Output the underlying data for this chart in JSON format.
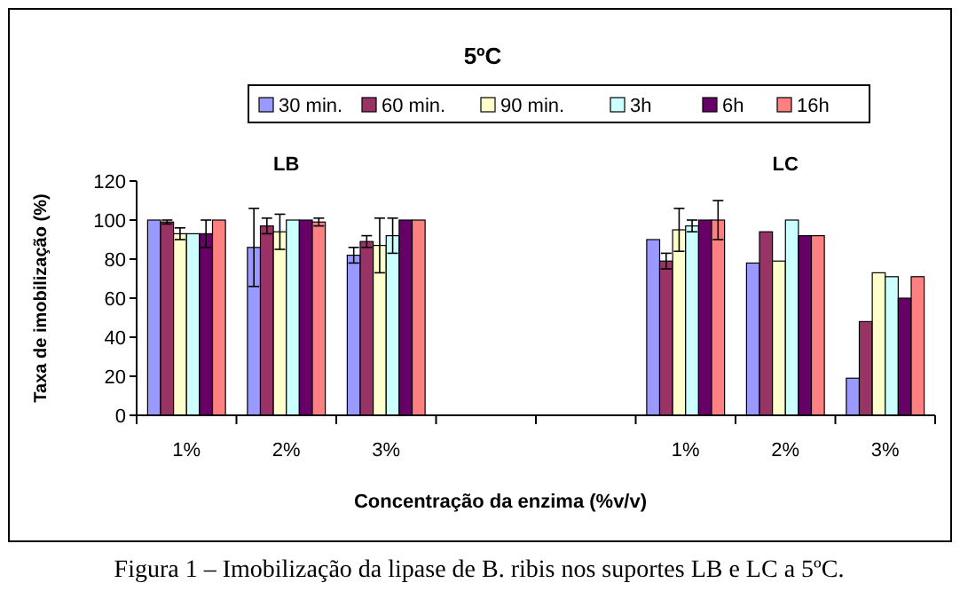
{
  "chart_data": {
    "type": "bar",
    "title": "5ºC",
    "xlabel": "Concentração da enzima (%v/v)",
    "ylabel": "Taxa de imobilização (%)",
    "annotations": [
      "LB",
      "LC",
      "Figura 1 – Imobilização da lipase de B. ribis nos suportes LB e LC a 5ºC."
    ],
    "categories": [
      "1%",
      "2%",
      "3%",
      null,
      null,
      "1%",
      "2%",
      "3%"
    ],
    "series": [
      {
        "name": "30 min.",
        "color": "#9999ff",
        "values": [
          100,
          86,
          82,
          null,
          null,
          90,
          78,
          19
        ],
        "errors": [
          null,
          20,
          4,
          null,
          null,
          null,
          null,
          null
        ]
      },
      {
        "name": "60 min.",
        "color": "#993366",
        "values": [
          99,
          97,
          89,
          null,
          null,
          79,
          94,
          48
        ],
        "errors": [
          1,
          4,
          3,
          null,
          null,
          4,
          null,
          null
        ]
      },
      {
        "name": "90 min.",
        "color": "#ffffcc",
        "values": [
          93,
          94,
          87,
          null,
          null,
          95,
          79,
          73
        ],
        "errors": [
          3,
          9,
          14,
          null,
          null,
          11,
          null,
          null
        ]
      },
      {
        "name": "3h",
        "color": "#ccffff",
        "values": [
          93,
          100,
          92,
          null,
          null,
          97,
          100,
          71
        ],
        "errors": [
          null,
          null,
          9,
          null,
          null,
          3,
          null,
          null
        ]
      },
      {
        "name": "6h",
        "color": "#660066",
        "values": [
          93,
          100,
          100,
          null,
          null,
          100,
          92,
          60
        ],
        "errors": [
          7,
          null,
          null,
          null,
          null,
          null,
          null,
          null
        ]
      },
      {
        "name": "16h",
        "color": "#ff8080",
        "values": [
          100,
          99,
          100,
          null,
          null,
          100,
          92,
          71
        ],
        "errors": [
          null,
          2,
          null,
          null,
          null,
          10,
          null,
          null
        ]
      }
    ],
    "ylim": [
      0,
      120
    ],
    "yticks": [
      0,
      20,
      40,
      60,
      80,
      100,
      120
    ],
    "legend": "top",
    "grid": false
  }
}
